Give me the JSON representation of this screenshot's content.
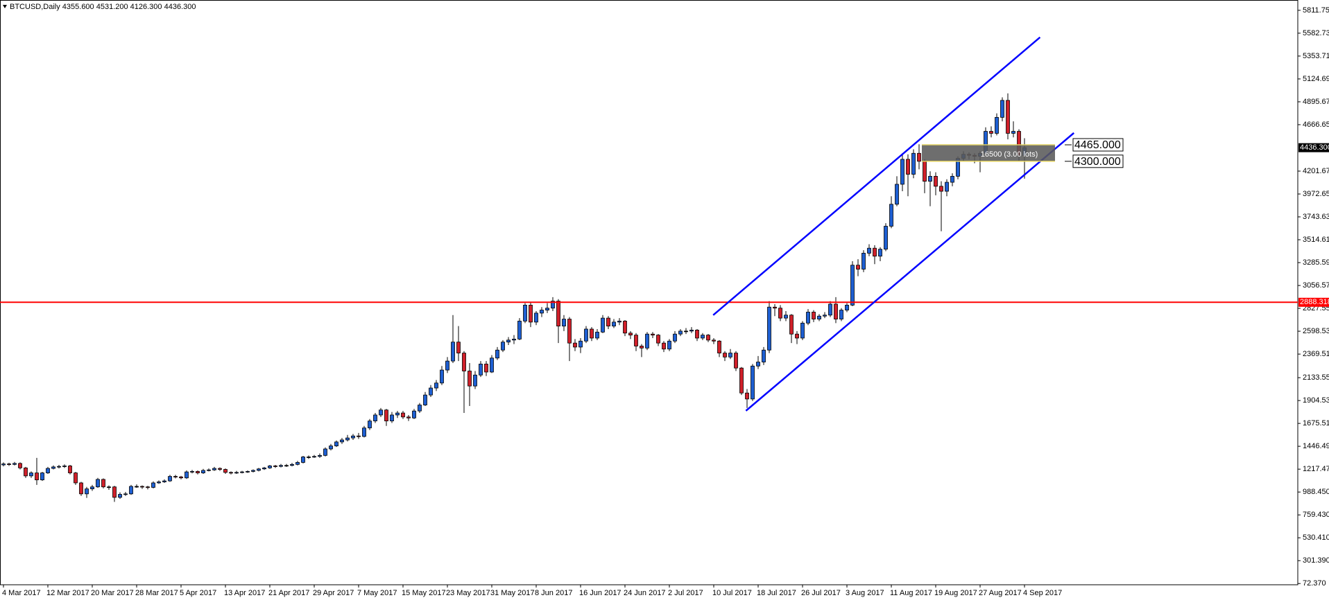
{
  "chart_data": {
    "type": "candlestick",
    "title": "BTCUSD,Daily  4355.600 4531.200 4126.300 4436.300",
    "up_color": "#1e5fd2",
    "down_color": "#d0202a",
    "ylim": [
      60,
      5915
    ],
    "yticks": [
      {
        "value": 72.37,
        "label": "72.370"
      },
      {
        "value": 301.39,
        "label": "301.390"
      },
      {
        "value": 530.41,
        "label": "530.410"
      },
      {
        "value": 759.43,
        "label": "759.430"
      },
      {
        "value": 988.45,
        "label": "988.450"
      },
      {
        "value": 1217.47,
        "label": "1217.470"
      },
      {
        "value": 1446.49,
        "label": "1446.490"
      },
      {
        "value": 1675.51,
        "label": "1675.510"
      },
      {
        "value": 1904.53,
        "label": "1904.530"
      },
      {
        "value": 2133.55,
        "label": "2133.550"
      },
      {
        "value": 2369.51,
        "label": "2369.510"
      },
      {
        "value": 2598.53,
        "label": "2598.530"
      },
      {
        "value": 2827.55,
        "label": "2827.550"
      },
      {
        "value": 3056.57,
        "label": "3056.570"
      },
      {
        "value": 3285.59,
        "label": "3285.590"
      },
      {
        "value": 3514.61,
        "label": "3514.610"
      },
      {
        "value": 3743.63,
        "label": "3743.630"
      },
      {
        "value": 3972.65,
        "label": "3972.650"
      },
      {
        "value": 4201.67,
        "label": "4201.670"
      },
      {
        "value": 4666.65,
        "label": "4666.650"
      },
      {
        "value": 4895.67,
        "label": "4895.670"
      },
      {
        "value": 5124.69,
        "label": "5124.690"
      },
      {
        "value": 5353.71,
        "label": "5353.710"
      },
      {
        "value": 5582.73,
        "label": "5582.730"
      },
      {
        "value": 5811.75,
        "label": "5811.750"
      }
    ],
    "categories": [
      "4 Mar 2017",
      null,
      null,
      null,
      null,
      null,
      null,
      null,
      "12 Mar 2017",
      null,
      null,
      null,
      null,
      null,
      null,
      null,
      "20 Mar 2017",
      null,
      null,
      null,
      null,
      null,
      null,
      null,
      "28 Mar 2017",
      null,
      null,
      null,
      null,
      null,
      null,
      null,
      "5 Apr 2017",
      null,
      null,
      null,
      null,
      null,
      null,
      null,
      "13 Apr 2017",
      null,
      null,
      null,
      null,
      null,
      null,
      null,
      "21 Apr 2017",
      null,
      null,
      null,
      null,
      null,
      null,
      null,
      "29 Apr 2017",
      null,
      null,
      null,
      null,
      null,
      null,
      null,
      "7 May 2017",
      null,
      null,
      null,
      null,
      null,
      null,
      null,
      "15 May 2017",
      null,
      null,
      null,
      null,
      null,
      null,
      null,
      "23 May 2017",
      null,
      null,
      null,
      null,
      null,
      null,
      null,
      "31 May 2017",
      null,
      null,
      null,
      null,
      null,
      null,
      null,
      "8 Jun 2017",
      null,
      null,
      null,
      null,
      null,
      null,
      null,
      "16 Jun 2017",
      null,
      null,
      null,
      null,
      null,
      null,
      null,
      "24 Jun 2017",
      null,
      null,
      null,
      null,
      null,
      null,
      null,
      "2 Jul 2017",
      null,
      null,
      null,
      null,
      null,
      null,
      null,
      "10 Jul 2017",
      null,
      null,
      null,
      null,
      null,
      null,
      null,
      "18 Jul 2017",
      null,
      null,
      null,
      null,
      null,
      null,
      null,
      "26 Jul 2017",
      null,
      null,
      null,
      null,
      null,
      null,
      null,
      "3 Aug 2017",
      null,
      null,
      null,
      null,
      null,
      null,
      null,
      "11 Aug 2017",
      null,
      null,
      null,
      null,
      null,
      null,
      null,
      "19 Aug 2017",
      null,
      null,
      null,
      null,
      null,
      null,
      null,
      "27 Aug 2017",
      null,
      null,
      null,
      null,
      null,
      null,
      null,
      "4 Sep 2017"
    ],
    "candles": [
      [
        1260,
        1285,
        1245,
        1270
      ],
      [
        1270,
        1282,
        1250,
        1265
      ],
      [
        1265,
        1290,
        1255,
        1275
      ],
      [
        1275,
        1285,
        1215,
        1230
      ],
      [
        1230,
        1240,
        1130,
        1150
      ],
      [
        1150,
        1195,
        1130,
        1180
      ],
      [
        1180,
        1330,
        1060,
        1110
      ],
      [
        1110,
        1190,
        1100,
        1180
      ],
      [
        1180,
        1240,
        1170,
        1225
      ],
      [
        1225,
        1255,
        1215,
        1240
      ],
      [
        1240,
        1260,
        1225,
        1245
      ],
      [
        1245,
        1265,
        1230,
        1250
      ],
      [
        1250,
        1260,
        1165,
        1180
      ],
      [
        1180,
        1190,
        1060,
        1080
      ],
      [
        1080,
        1090,
        950,
        970
      ],
      [
        970,
        1040,
        930,
        1020
      ],
      [
        1020,
        1060,
        1000,
        1040
      ],
      [
        1040,
        1130,
        1030,
        1115
      ],
      [
        1115,
        1125,
        1025,
        1040
      ],
      [
        1040,
        1055,
        1010,
        1040
      ],
      [
        1040,
        1050,
        890,
        935
      ],
      [
        935,
        985,
        920,
        965
      ],
      [
        965,
        990,
        950,
        970
      ],
      [
        970,
        1060,
        960,
        1045
      ],
      [
        1045,
        1065,
        1030,
        1045
      ],
      [
        1045,
        1055,
        1020,
        1040
      ],
      [
        1040,
        1050,
        1015,
        1035
      ],
      [
        1035,
        1095,
        1025,
        1080
      ],
      [
        1080,
        1105,
        1070,
        1090
      ],
      [
        1090,
        1115,
        1080,
        1100
      ],
      [
        1100,
        1160,
        1090,
        1145
      ],
      [
        1145,
        1160,
        1125,
        1140
      ],
      [
        1140,
        1150,
        1115,
        1130
      ],
      [
        1130,
        1205,
        1120,
        1190
      ],
      [
        1190,
        1210,
        1175,
        1195
      ],
      [
        1195,
        1205,
        1165,
        1180
      ],
      [
        1180,
        1220,
        1170,
        1205
      ],
      [
        1205,
        1225,
        1195,
        1210
      ],
      [
        1210,
        1240,
        1200,
        1225
      ],
      [
        1225,
        1235,
        1200,
        1215
      ],
      [
        1215,
        1225,
        1170,
        1185
      ],
      [
        1185,
        1195,
        1165,
        1180
      ],
      [
        1180,
        1200,
        1170,
        1185
      ],
      [
        1185,
        1200,
        1175,
        1190
      ],
      [
        1190,
        1205,
        1180,
        1195
      ],
      [
        1195,
        1215,
        1185,
        1205
      ],
      [
        1205,
        1230,
        1195,
        1220
      ],
      [
        1220,
        1240,
        1210,
        1230
      ],
      [
        1230,
        1260,
        1220,
        1250
      ],
      [
        1250,
        1260,
        1230,
        1245
      ],
      [
        1245,
        1270,
        1235,
        1255
      ],
      [
        1255,
        1270,
        1240,
        1255
      ],
      [
        1255,
        1280,
        1245,
        1265
      ],
      [
        1265,
        1300,
        1255,
        1285
      ],
      [
        1285,
        1350,
        1275,
        1340
      ],
      [
        1340,
        1355,
        1320,
        1340
      ],
      [
        1340,
        1360,
        1330,
        1345
      ],
      [
        1345,
        1375,
        1330,
        1355
      ],
      [
        1355,
        1435,
        1345,
        1420
      ],
      [
        1420,
        1470,
        1405,
        1450
      ],
      [
        1450,
        1505,
        1440,
        1490
      ],
      [
        1490,
        1530,
        1470,
        1510
      ],
      [
        1510,
        1560,
        1495,
        1530
      ],
      [
        1530,
        1570,
        1510,
        1550
      ],
      [
        1550,
        1580,
        1520,
        1545
      ],
      [
        1545,
        1650,
        1535,
        1630
      ],
      [
        1630,
        1720,
        1610,
        1700
      ],
      [
        1700,
        1780,
        1680,
        1760
      ],
      [
        1760,
        1830,
        1740,
        1810
      ],
      [
        1810,
        1820,
        1650,
        1700
      ],
      [
        1700,
        1790,
        1680,
        1760
      ],
      [
        1760,
        1800,
        1730,
        1780
      ],
      [
        1780,
        1800,
        1720,
        1740
      ],
      [
        1740,
        1760,
        1700,
        1730
      ],
      [
        1730,
        1820,
        1720,
        1800
      ],
      [
        1800,
        1880,
        1780,
        1860
      ],
      [
        1860,
        1990,
        1850,
        1960
      ],
      [
        1960,
        2060,
        1940,
        2030
      ],
      [
        2030,
        2110,
        2000,
        2080
      ],
      [
        2080,
        2250,
        2060,
        2210
      ],
      [
        2210,
        2340,
        2180,
        2300
      ],
      [
        2300,
        2760,
        2280,
        2490
      ],
      [
        2490,
        2650,
        2300,
        2380
      ],
      [
        2380,
        2400,
        1780,
        2200
      ],
      [
        2200,
        2280,
        1850,
        2050
      ],
      [
        2050,
        2200,
        2020,
        2160
      ],
      [
        2160,
        2300,
        2140,
        2270
      ],
      [
        2270,
        2300,
        2150,
        2190
      ],
      [
        2190,
        2360,
        2180,
        2330
      ],
      [
        2330,
        2440,
        2310,
        2410
      ],
      [
        2410,
        2510,
        2390,
        2490
      ],
      [
        2490,
        2540,
        2460,
        2510
      ],
      [
        2510,
        2560,
        2470,
        2520
      ],
      [
        2520,
        2730,
        2510,
        2700
      ],
      [
        2700,
        2880,
        2680,
        2860
      ],
      [
        2860,
        2890,
        2640,
        2690
      ],
      [
        2690,
        2800,
        2660,
        2780
      ],
      [
        2780,
        2840,
        2740,
        2810
      ],
      [
        2810,
        2880,
        2780,
        2830
      ],
      [
        2830,
        2940,
        2800,
        2900
      ],
      [
        2900,
        2920,
        2480,
        2650
      ],
      [
        2650,
        2760,
        2600,
        2720
      ],
      [
        2720,
        2740,
        2300,
        2480
      ],
      [
        2480,
        2520,
        2400,
        2440
      ],
      [
        2440,
        2530,
        2380,
        2500
      ],
      [
        2500,
        2650,
        2480,
        2620
      ],
      [
        2620,
        2640,
        2500,
        2530
      ],
      [
        2530,
        2620,
        2510,
        2590
      ],
      [
        2590,
        2760,
        2580,
        2730
      ],
      [
        2730,
        2750,
        2620,
        2650
      ],
      [
        2650,
        2720,
        2630,
        2690
      ],
      [
        2690,
        2730,
        2660,
        2700
      ],
      [
        2700,
        2710,
        2550,
        2580
      ],
      [
        2580,
        2600,
        2520,
        2560
      ],
      [
        2560,
        2580,
        2400,
        2450
      ],
      [
        2450,
        2470,
        2340,
        2430
      ],
      [
        2430,
        2590,
        2410,
        2570
      ],
      [
        2570,
        2590,
        2530,
        2560
      ],
      [
        2560,
        2570,
        2450,
        2480
      ],
      [
        2480,
        2500,
        2390,
        2420
      ],
      [
        2420,
        2520,
        2400,
        2500
      ],
      [
        2500,
        2600,
        2480,
        2570
      ],
      [
        2570,
        2620,
        2550,
        2600
      ],
      [
        2600,
        2630,
        2570,
        2600
      ],
      [
        2600,
        2640,
        2580,
        2610
      ],
      [
        2610,
        2620,
        2500,
        2530
      ],
      [
        2530,
        2580,
        2510,
        2560
      ],
      [
        2560,
        2570,
        2490,
        2510
      ],
      [
        2510,
        2530,
        2470,
        2500
      ],
      [
        2500,
        2510,
        2340,
        2380
      ],
      [
        2380,
        2400,
        2300,
        2340
      ],
      [
        2340,
        2420,
        2320,
        2380
      ],
      [
        2380,
        2400,
        2200,
        2230
      ],
      [
        2230,
        2240,
        1960,
        1980
      ],
      [
        1980,
        2020,
        1830,
        1920
      ],
      [
        1920,
        2270,
        1900,
        2250
      ],
      [
        2250,
        2350,
        2220,
        2290
      ],
      [
        2290,
        2440,
        2260,
        2410
      ],
      [
        2410,
        2900,
        2380,
        2840
      ],
      [
        2840,
        2870,
        2750,
        2830
      ],
      [
        2830,
        2860,
        2700,
        2730
      ],
      [
        2730,
        2800,
        2700,
        2760
      ],
      [
        2760,
        2770,
        2480,
        2570
      ],
      [
        2570,
        2600,
        2470,
        2530
      ],
      [
        2530,
        2700,
        2510,
        2680
      ],
      [
        2680,
        2820,
        2660,
        2790
      ],
      [
        2790,
        2810,
        2690,
        2720
      ],
      [
        2720,
        2770,
        2700,
        2750
      ],
      [
        2750,
        2790,
        2730,
        2760
      ],
      [
        2760,
        2900,
        2740,
        2870
      ],
      [
        2870,
        2940,
        2680,
        2720
      ],
      [
        2720,
        2830,
        2700,
        2810
      ],
      [
        2810,
        2880,
        2790,
        2860
      ],
      [
        2860,
        3300,
        2850,
        3260
      ],
      [
        3260,
        3320,
        3150,
        3220
      ],
      [
        3220,
        3410,
        3190,
        3380
      ],
      [
        3380,
        3470,
        3350,
        3430
      ],
      [
        3430,
        3460,
        3270,
        3350
      ],
      [
        3350,
        3440,
        3300,
        3420
      ],
      [
        3420,
        3680,
        3400,
        3650
      ],
      [
        3650,
        3950,
        3630,
        3870
      ],
      [
        3870,
        4150,
        3850,
        4070
      ],
      [
        4070,
        4380,
        4000,
        4320
      ],
      [
        4320,
        4370,
        3950,
        4170
      ],
      [
        4170,
        4420,
        4130,
        4380
      ],
      [
        4380,
        4470,
        4220,
        4300
      ],
      [
        4300,
        4320,
        3980,
        4100
      ],
      [
        4100,
        4200,
        3850,
        4150
      ],
      [
        4150,
        4190,
        3960,
        4050
      ],
      [
        4050,
        4100,
        3600,
        4000
      ],
      [
        4000,
        4120,
        3950,
        4090
      ],
      [
        4090,
        4180,
        4050,
        4150
      ],
      [
        4150,
        4350,
        4120,
        4330
      ],
      [
        4330,
        4400,
        4300,
        4370
      ],
      [
        4370,
        4390,
        4320,
        4360
      ],
      [
        4360,
        4380,
        4280,
        4350
      ],
      [
        4350,
        4400,
        4190,
        4380
      ],
      [
        4380,
        4640,
        4360,
        4600
      ],
      [
        4600,
        4650,
        4540,
        4580
      ],
      [
        4580,
        4780,
        4560,
        4740
      ],
      [
        4740,
        4940,
        4700,
        4910
      ],
      [
        4910,
        4980,
        4520,
        4580
      ],
      [
        4580,
        4700,
        4540,
        4600
      ],
      [
        4600,
        4620,
        4300,
        4355.6
      ],
      [
        4355.6,
        4531.2,
        4126.3,
        4436.3
      ]
    ],
    "hline": {
      "value": 2888.318,
      "label": "2888.318",
      "color": "#ff0000"
    },
    "last_price": {
      "value": 4436.3,
      "label": "4436.300"
    },
    "channel_color": "#0000ff",
    "channels": [
      {
        "x": [
          127.9,
          186.8
        ],
        "y": [
          2760,
          5542
        ]
      },
      {
        "x": [
          133.8,
          192.9
        ],
        "y": [
          1802,
          4584
        ]
      }
    ],
    "trade": {
      "label": "16500 (3.00 lots)",
      "x": [
        165.5,
        189.5
      ],
      "color": "#5a5a5a",
      "edge_color": "#e0d060",
      "levels": [
        {
          "value": 4465,
          "label": "4465.000"
        },
        {
          "value": 4300,
          "label": "4300.000"
        }
      ]
    }
  }
}
